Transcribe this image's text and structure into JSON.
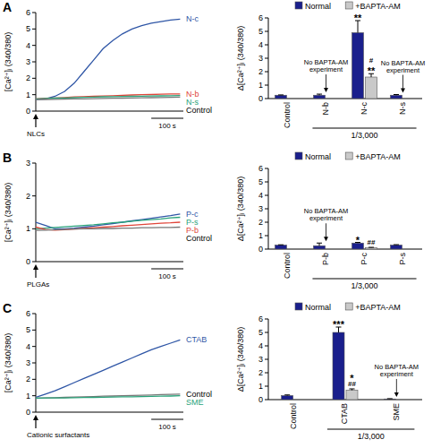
{
  "chart_data": [
    {
      "type": "line",
      "title": "A",
      "ylabel": "[Ca²⁺]ᵢ (340/380)",
      "x": [
        0,
        30,
        60,
        90,
        120,
        150,
        180,
        210,
        240,
        270,
        300,
        330,
        360,
        390,
        420,
        450
      ],
      "xlim": [
        0,
        460
      ],
      "ylim": [
        0,
        6
      ],
      "yticks": [
        0,
        1,
        2,
        3,
        4,
        5,
        6
      ],
      "tick_labels": "y",
      "grid": false,
      "scale_bar": {
        "value": 100,
        "label": "100 s"
      },
      "annotations": [
        {
          "text": "NLCs",
          "x": 0
        }
      ],
      "series": [
        {
          "name": "N-c",
          "color": "#2f56a6",
          "values": [
            0.7,
            0.75,
            0.9,
            1.2,
            1.7,
            2.4,
            3.1,
            3.8,
            4.3,
            4.7,
            5.0,
            5.2,
            5.35,
            5.45,
            5.55,
            5.6
          ]
        },
        {
          "name": "N-b",
          "color": "#e0453a",
          "values": [
            0.75,
            0.78,
            0.8,
            0.83,
            0.86,
            0.88,
            0.9,
            0.92,
            0.94,
            0.96,
            0.98,
            1.0,
            1.01,
            1.03,
            1.04,
            1.05
          ]
        },
        {
          "name": "N-s",
          "color": "#2aa37a",
          "values": [
            0.75,
            0.77,
            0.79,
            0.8,
            0.82,
            0.84,
            0.85,
            0.87,
            0.88,
            0.89,
            0.9,
            0.91,
            0.92,
            0.93,
            0.94,
            0.95
          ]
        },
        {
          "name": "Control",
          "color": "#777777",
          "values": [
            0.7,
            0.71,
            0.72,
            0.73,
            0.74,
            0.75,
            0.76,
            0.77,
            0.78,
            0.79,
            0.8,
            0.81,
            0.82,
            0.83,
            0.84,
            0.85
          ]
        }
      ]
    },
    {
      "type": "bar",
      "ylabel": "Δ[Ca²⁺]ᵢ (340/380)",
      "categories": [
        "Control",
        "N-b",
        "N-c",
        "N-s"
      ],
      "ylim": [
        0,
        6
      ],
      "yticks": [
        0,
        1,
        2,
        3,
        4,
        5,
        6
      ],
      "grid": false,
      "legend": "top",
      "series": [
        {
          "name": "Normal",
          "color": "#1a1f8c",
          "values": [
            0.25,
            0.25,
            4.9,
            0.25
          ],
          "errors": [
            0.02,
            0.08,
            0.9,
            0.05
          ]
        },
        {
          "name": "+BAPTA-AM",
          "color": "#c9c9c9",
          "values": [
            null,
            null,
            1.6,
            null
          ],
          "errors": [
            null,
            null,
            0.25,
            null
          ]
        }
      ],
      "annotations": [
        {
          "text": [
            "**"
          ],
          "series": "Normal",
          "category": "N-c"
        },
        {
          "text": [
            "#",
            "**"
          ],
          "series": "+BAPTA-AM",
          "category": "N-c"
        },
        {
          "text": [
            "No BAPTA-AM",
            "experiment"
          ],
          "category": "N-b"
        },
        {
          "text": [
            "No BAPTA-AM",
            "experiment"
          ],
          "category": "N-s"
        }
      ],
      "groups": [
        {
          "label": "1/3,000",
          "from": "N-b",
          "to": "N-s"
        }
      ]
    },
    {
      "type": "line",
      "title": "B",
      "ylabel": "[Ca²⁺]ᵢ (340/380)",
      "x": [
        0,
        30,
        60,
        90,
        120,
        150,
        180,
        210,
        240,
        270,
        300,
        330,
        360,
        390,
        420,
        450
      ],
      "xlim": [
        0,
        460
      ],
      "ylim": [
        0,
        3
      ],
      "yticks": [
        0,
        1,
        2,
        3
      ],
      "tick_labels": "y",
      "grid": false,
      "scale_bar": {
        "value": 100,
        "label": "100 s"
      },
      "annotations": [
        {
          "text": "PLGAs",
          "x": 0
        }
      ],
      "series": [
        {
          "name": "P-c",
          "color": "#2f56a6",
          "values": [
            1.2,
            1.1,
            1.0,
            1.0,
            1.02,
            1.05,
            1.08,
            1.12,
            1.16,
            1.2,
            1.24,
            1.28,
            1.32,
            1.36,
            1.4,
            1.45
          ]
        },
        {
          "name": "P-s",
          "color": "#2aa37a",
          "values": [
            1.0,
            1.02,
            1.04,
            1.06,
            1.08,
            1.1,
            1.12,
            1.15,
            1.18,
            1.2,
            1.23,
            1.26,
            1.28,
            1.3,
            1.33,
            1.35
          ]
        },
        {
          "name": "P-b",
          "color": "#e0453a",
          "values": [
            1.05,
            0.98,
            0.96,
            0.97,
            0.99,
            1.01,
            1.03,
            1.05,
            1.07,
            1.09,
            1.11,
            1.13,
            1.15,
            1.17,
            1.18,
            1.2
          ]
        },
        {
          "name": "Control",
          "color": "#777777",
          "values": [
            0.95,
            0.96,
            0.97,
            0.98,
            0.99,
            1.0,
            1.0,
            1.01,
            1.01,
            1.02,
            1.02,
            1.03,
            1.03,
            1.04,
            1.04,
            1.05
          ]
        }
      ]
    },
    {
      "type": "bar",
      "ylabel": "Δ[Ca²⁺]ᵢ (340/380)",
      "categories": [
        "Control",
        "P-b",
        "P-c",
        "P-s"
      ],
      "ylim": [
        0,
        6
      ],
      "yticks": [
        0,
        1,
        2,
        3,
        4,
        5,
        6
      ],
      "grid": false,
      "legend": "top",
      "series": [
        {
          "name": "Normal",
          "color": "#1a1f8c",
          "values": [
            0.3,
            0.25,
            0.45,
            0.3
          ],
          "errors": [
            0.02,
            0.2,
            0.05,
            0.03
          ]
        },
        {
          "name": "+BAPTA-AM",
          "color": "#c9c9c9",
          "values": [
            null,
            null,
            0.1,
            null
          ],
          "errors": [
            null,
            null,
            0.03,
            null
          ]
        }
      ],
      "annotations": [
        {
          "text": [
            "*"
          ],
          "series": "Normal",
          "category": "P-c"
        },
        {
          "text": [
            "##"
          ],
          "series": "+BAPTA-AM",
          "category": "P-c"
        },
        {
          "text": [
            "No BAPTA-AM",
            "experiment"
          ],
          "category": "P-b"
        }
      ],
      "groups": [
        {
          "label": "1/3,000",
          "from": "P-b",
          "to": "P-s"
        }
      ]
    },
    {
      "type": "line",
      "title": "C",
      "ylabel": "[Ca²⁺]ᵢ (340/380)",
      "x": [
        0,
        30,
        60,
        90,
        120,
        150,
        180,
        210,
        240,
        270,
        300,
        330,
        360,
        390,
        420,
        450
      ],
      "xlim": [
        0,
        460
      ],
      "ylim": [
        0,
        6
      ],
      "yticks": [
        0,
        1,
        2,
        3,
        4,
        5,
        6
      ],
      "tick_labels": "y",
      "grid": false,
      "scale_bar": {
        "value": 100,
        "label": "100 s"
      },
      "annotations": [
        {
          "text": "Cationic surfactants",
          "x": 0
        }
      ],
      "series": [
        {
          "name": "CTAB",
          "color": "#2f56a6",
          "values": [
            0.9,
            1.1,
            1.3,
            1.55,
            1.8,
            2.05,
            2.3,
            2.55,
            2.8,
            3.05,
            3.3,
            3.55,
            3.8,
            4.0,
            4.2,
            4.4
          ]
        },
        {
          "name": "Control",
          "color": "#777777",
          "values": [
            0.85,
            0.87,
            0.88,
            0.9,
            0.92,
            0.93,
            0.95,
            0.97,
            0.98,
            1.0,
            1.02,
            1.03,
            1.05,
            1.07,
            1.08,
            1.1
          ]
        },
        {
          "name": "SME",
          "color": "#2aa37a",
          "values": [
            0.85,
            0.86,
            0.86,
            0.87,
            0.88,
            0.89,
            0.9,
            0.91,
            0.92,
            0.93,
            0.94,
            0.95,
            0.96,
            0.97,
            0.98,
            1.0
          ]
        }
      ]
    },
    {
      "type": "bar",
      "ylabel": "Δ[Ca²⁺]ᵢ (340/380)",
      "categories": [
        "Control",
        "CTAB",
        "SME"
      ],
      "ylim": [
        0,
        6
      ],
      "yticks": [
        0,
        1,
        2,
        3,
        4,
        5,
        6
      ],
      "grid": false,
      "legend": "top",
      "series": [
        {
          "name": "Normal",
          "color": "#1a1f8c",
          "values": [
            0.3,
            5.0,
            0.05
          ],
          "errors": [
            0.05,
            0.4,
            0.02
          ]
        },
        {
          "name": "+BAPTA-AM",
          "color": "#c9c9c9",
          "values": [
            null,
            0.7,
            null
          ],
          "errors": [
            null,
            0.1,
            null
          ]
        }
      ],
      "annotations": [
        {
          "text": [
            "***"
          ],
          "series": "Normal",
          "category": "CTAB"
        },
        {
          "text": [
            "*",
            "##"
          ],
          "series": "+BAPTA-AM",
          "category": "CTAB"
        },
        {
          "text": [
            "No BAPTA-AM",
            "experiment"
          ],
          "category": "SME"
        }
      ],
      "groups": [
        {
          "label": "1/3,000",
          "from": "CTAB",
          "to": "SME"
        }
      ]
    }
  ]
}
